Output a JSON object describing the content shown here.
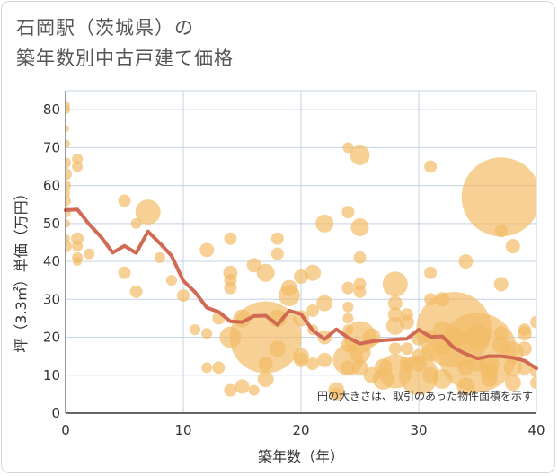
{
  "title_line1": "石岡駅（茨城県）の",
  "title_line2": "築年数別中古戸建て価格",
  "chart_data": {
    "type": "scatter",
    "title": "石岡駅（茨城県）の 築年数別中古戸建て価格",
    "xlabel": "築年数（年）",
    "ylabel": "坪（3.3㎡）単価（万円）",
    "xlim": [
      0,
      40
    ],
    "ylim": [
      0,
      85
    ],
    "xticks": [
      0,
      10,
      20,
      30,
      40
    ],
    "yticks": [
      0,
      10,
      20,
      30,
      40,
      50,
      60,
      70,
      80
    ],
    "grid": true,
    "note": "円の大きさは、取引のあった物件面積を示す",
    "colors": {
      "bubble": "#f2bc66",
      "line": "#d06a52",
      "grid": "#c5d3e3"
    },
    "bubbles": [
      [
        0,
        81,
        5
      ],
      [
        0,
        80,
        5
      ],
      [
        0,
        75,
        4
      ],
      [
        0,
        71,
        5
      ],
      [
        0,
        66,
        6
      ],
      [
        0,
        63,
        7
      ],
      [
        0,
        60,
        6
      ],
      [
        0,
        58,
        5
      ],
      [
        0,
        56,
        6
      ],
      [
        0,
        53,
        6
      ],
      [
        0,
        50,
        5
      ],
      [
        0,
        46,
        5
      ],
      [
        0,
        44,
        7
      ],
      [
        1,
        67,
        6
      ],
      [
        1,
        65,
        6
      ],
      [
        1,
        46,
        7
      ],
      [
        1,
        44,
        6
      ],
      [
        1,
        41,
        6
      ],
      [
        1,
        40,
        5
      ],
      [
        2,
        42,
        6
      ],
      [
        5,
        56,
        7
      ],
      [
        5,
        37,
        7
      ],
      [
        6,
        50,
        6
      ],
      [
        6,
        32,
        7
      ],
      [
        7,
        53,
        14
      ],
      [
        8,
        41,
        6
      ],
      [
        9,
        35,
        6
      ],
      [
        10,
        31,
        7
      ],
      [
        11,
        22,
        6
      ],
      [
        12,
        43,
        8
      ],
      [
        12,
        21,
        6
      ],
      [
        12,
        12,
        6
      ],
      [
        13,
        25,
        7
      ],
      [
        13,
        12,
        7
      ],
      [
        14,
        46,
        7
      ],
      [
        14,
        37,
        8
      ],
      [
        14,
        35,
        7
      ],
      [
        14,
        33,
        7
      ],
      [
        14,
        20,
        12
      ],
      [
        14,
        6,
        7
      ],
      [
        15,
        25,
        10
      ],
      [
        15,
        7,
        8
      ],
      [
        16,
        39,
        8
      ],
      [
        16,
        6,
        6
      ],
      [
        17,
        37,
        10
      ],
      [
        17,
        20,
        40
      ],
      [
        17,
        13,
        8
      ],
      [
        17,
        9,
        9
      ],
      [
        18,
        46,
        7
      ],
      [
        18,
        42,
        7
      ],
      [
        18,
        25,
        10
      ],
      [
        18,
        17,
        9
      ],
      [
        19,
        33,
        9
      ],
      [
        19,
        31,
        12
      ],
      [
        20,
        36,
        8
      ],
      [
        20,
        25,
        9
      ],
      [
        20,
        15,
        9
      ],
      [
        20,
        14,
        8
      ],
      [
        21,
        37,
        9
      ],
      [
        21,
        27,
        7
      ],
      [
        21,
        22,
        6
      ],
      [
        21,
        13,
        7
      ],
      [
        22,
        50,
        10
      ],
      [
        22,
        29,
        9
      ],
      [
        22,
        20,
        8
      ],
      [
        22,
        14,
        8
      ],
      [
        23,
        6,
        9
      ],
      [
        23,
        5,
        7
      ],
      [
        24,
        70,
        6
      ],
      [
        24,
        53,
        7
      ],
      [
        24,
        33,
        7
      ],
      [
        24,
        28,
        6
      ],
      [
        24,
        25,
        6
      ],
      [
        24,
        22,
        6
      ],
      [
        24,
        18,
        8
      ],
      [
        24,
        14,
        17
      ],
      [
        24,
        12,
        8
      ],
      [
        25,
        68,
        11
      ],
      [
        25,
        49,
        10
      ],
      [
        25,
        41,
        7
      ],
      [
        25,
        34,
        7
      ],
      [
        25,
        32,
        7
      ],
      [
        25,
        20,
        18
      ],
      [
        25,
        16,
        12
      ],
      [
        25,
        12,
        9
      ],
      [
        26,
        20,
        10
      ],
      [
        26,
        10,
        9
      ],
      [
        27,
        12,
        10
      ],
      [
        27,
        9,
        12
      ],
      [
        28,
        34,
        14
      ],
      [
        28,
        29,
        8
      ],
      [
        28,
        26,
        8
      ],
      [
        28,
        23,
        10
      ],
      [
        28,
        17,
        7
      ],
      [
        28,
        11,
        19
      ],
      [
        29,
        26,
        7
      ],
      [
        29,
        24,
        8
      ],
      [
        29,
        17,
        7
      ],
      [
        29,
        13,
        8
      ],
      [
        30,
        20,
        9
      ],
      [
        30,
        15,
        8
      ],
      [
        30,
        13,
        9
      ],
      [
        30,
        10,
        22
      ],
      [
        31,
        65,
        7
      ],
      [
        31,
        37,
        7
      ],
      [
        31,
        30,
        7
      ],
      [
        31,
        20,
        8
      ],
      [
        31,
        16,
        10
      ],
      [
        31,
        10,
        9
      ],
      [
        32,
        30,
        8
      ],
      [
        32,
        22,
        10
      ],
      [
        32,
        18,
        10
      ],
      [
        32,
        9,
        11
      ],
      [
        33,
        22,
        42
      ],
      [
        33,
        20,
        12
      ],
      [
        34,
        40,
        8
      ],
      [
        34,
        12,
        9
      ],
      [
        34,
        7,
        10
      ],
      [
        35,
        20,
        14
      ],
      [
        35,
        16,
        44
      ],
      [
        35,
        13,
        9
      ],
      [
        36,
        13,
        11
      ],
      [
        36,
        11,
        10
      ],
      [
        36,
        9,
        9
      ],
      [
        37,
        57,
        44
      ],
      [
        37,
        48,
        7
      ],
      [
        37,
        34,
        8
      ],
      [
        37,
        21,
        8
      ],
      [
        37,
        18,
        10
      ],
      [
        38,
        44,
        8
      ],
      [
        38,
        16,
        12
      ],
      [
        38,
        12,
        10
      ],
      [
        38,
        8,
        9
      ],
      [
        39,
        22,
        7
      ],
      [
        39,
        21,
        8
      ],
      [
        39,
        17,
        8
      ],
      [
        39,
        12,
        8
      ],
      [
        40,
        24,
        7
      ],
      [
        40,
        11,
        7
      ],
      [
        40,
        8,
        7
      ]
    ],
    "trend": {
      "x": [
        0,
        1,
        2,
        3,
        4,
        5,
        6,
        7,
        8,
        9,
        10,
        11,
        12,
        13,
        14,
        15,
        16,
        17,
        18,
        19,
        20,
        21,
        22,
        23,
        24,
        25,
        26,
        27,
        28,
        29,
        30,
        31,
        32,
        33,
        34,
        35,
        36,
        37,
        38,
        39,
        40
      ],
      "y": [
        53.5,
        53.7,
        49.8,
        46.5,
        42.3,
        44.1,
        42.2,
        47.9,
        44.8,
        41.5,
        34.9,
        31.9,
        27.8,
        26.7,
        24.2,
        24.0,
        25.6,
        25.7,
        23.3,
        27.0,
        26.1,
        21.8,
        19.5,
        22.1,
        19.9,
        18.3,
        18.9,
        19.2,
        19.4,
        19.6,
        22.0,
        20.1,
        20.2,
        17.2,
        15.6,
        14.4,
        15.0,
        15.0,
        14.6,
        13.8,
        11.8
      ]
    }
  }
}
